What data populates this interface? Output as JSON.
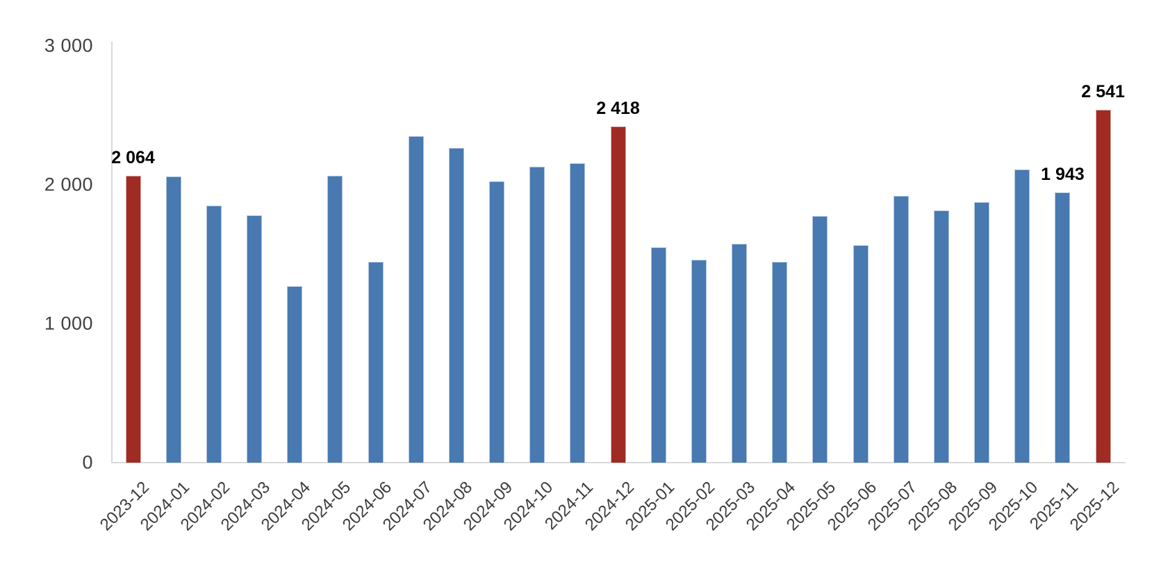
{
  "chart_data": {
    "type": "bar",
    "title": "",
    "xlabel": "",
    "ylabel": "",
    "ylim": [
      0,
      3000
    ],
    "grid": false,
    "legend": false,
    "categories": [
      "2023-12",
      "2024-01",
      "2024-02",
      "2024-03",
      "2024-04",
      "2024-05",
      "2024-06",
      "2024-07",
      "2024-08",
      "2024-09",
      "2024-10",
      "2024-11",
      "2024-12",
      "2025-01",
      "2025-02",
      "2025-03",
      "2025-04",
      "2025-05",
      "2025-06",
      "2025-07",
      "2025-08",
      "2025-09",
      "2025-10",
      "2025-11",
      "2025-12"
    ],
    "values": [
      2064,
      2060,
      1850,
      1780,
      1270,
      2065,
      1445,
      2350,
      2265,
      2025,
      2130,
      2155,
      2418,
      1550,
      1460,
      1575,
      1445,
      1775,
      1565,
      1920,
      1815,
      1875,
      2110,
      1943,
      2541
    ],
    "highlighted_categories": [
      "2023-12",
      "2024-12",
      "2025-12"
    ],
    "data_labels": [
      {
        "category": "2023-12",
        "text": "2 064"
      },
      {
        "category": "2024-12",
        "text": "2 418"
      },
      {
        "category": "2025-11",
        "text": "1 943"
      },
      {
        "category": "2025-12",
        "text": "2 541"
      }
    ],
    "yticks": [
      {
        "value": 3000,
        "label": "3 000"
      },
      {
        "value": 2000,
        "label": "2 000"
      },
      {
        "value": 1000,
        "label": "1 000"
      },
      {
        "value": 0,
        "label": "0"
      }
    ],
    "colors": {
      "bar": "#4879B0",
      "bar_border": "#AEC5DF",
      "highlight": "#9F2B23",
      "highlight_border": "#D8ACA8",
      "axis": "#D9D9D9",
      "y_tick_label": "#404040",
      "x_tick_label": "#3C3C3C",
      "data_label": "#000000",
      "background": "#FFFFFF"
    }
  }
}
